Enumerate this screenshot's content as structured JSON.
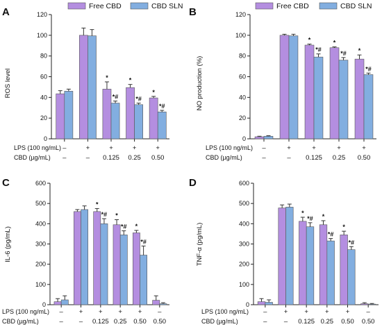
{
  "legend": {
    "series": [
      {
        "name": "Free CBD",
        "color": "#b48ee0"
      },
      {
        "name": "CBD SLN",
        "color": "#82aee0"
      }
    ]
  },
  "colors": {
    "errbar": "#333333",
    "axis": "#222222"
  },
  "chart_data": [
    {
      "panel": "A",
      "type": "bar",
      "ylabel": "ROS level",
      "ylim": [
        0,
        120
      ],
      "yticks": [
        0,
        20,
        40,
        60,
        80,
        100,
        120
      ],
      "row_labels": [
        "LPS (100 ng/mL)",
        "CBD (µg/mL)"
      ],
      "categories": [
        {
          "lps": "–",
          "cbd": "–"
        },
        {
          "lps": "+",
          "cbd": "–"
        },
        {
          "lps": "+",
          "cbd": "0.125"
        },
        {
          "lps": "+",
          "cbd": "0.25"
        },
        {
          "lps": "+",
          "cbd": "0.50"
        }
      ],
      "series": [
        {
          "name": "Free CBD",
          "values": [
            43.5,
            100,
            48,
            49.5,
            39.5
          ],
          "errors": [
            3,
            7,
            7,
            3,
            1.5
          ],
          "annotations": [
            "",
            "",
            "*",
            "*",
            "*"
          ]
        },
        {
          "name": "CBD SLN",
          "values": [
            46,
            99.5,
            34.5,
            33,
            26
          ],
          "errors": [
            2,
            6,
            2,
            1.5,
            1.5
          ],
          "annotations": [
            "",
            "",
            "*#",
            "*#",
            "*#"
          ]
        }
      ]
    },
    {
      "panel": "B",
      "type": "bar",
      "ylabel": "NO production (%)",
      "ylim": [
        0,
        120
      ],
      "yticks": [
        0,
        20,
        40,
        60,
        80,
        100,
        120
      ],
      "row_labels": [
        "LPS (100 ng/mL)",
        "CBD (µg/mL)"
      ],
      "categories": [
        {
          "lps": "–",
          "cbd": "–"
        },
        {
          "lps": "+",
          "cbd": "–"
        },
        {
          "lps": "+",
          "cbd": "0.125"
        },
        {
          "lps": "+",
          "cbd": "0.25"
        },
        {
          "lps": "+",
          "cbd": "0.50"
        }
      ],
      "series": [
        {
          "name": "Free CBD",
          "values": [
            2,
            100,
            90.5,
            88,
            77
          ],
          "errors": [
            0.5,
            1,
            1,
            0.8,
            4
          ],
          "annotations": [
            "",
            "",
            "*",
            "*",
            "*"
          ]
        },
        {
          "name": "CBD SLN",
          "values": [
            2.5,
            99.5,
            79,
            76,
            62
          ],
          "errors": [
            0.5,
            1.5,
            3,
            2.5,
            1.5
          ],
          "annotations": [
            "",
            "",
            "*#",
            "*#",
            "*#"
          ]
        }
      ]
    },
    {
      "panel": "C",
      "type": "bar",
      "ylabel": "IL-6 (pg/mL)",
      "ylim": [
        0,
        600
      ],
      "yticks": [
        0,
        100,
        200,
        300,
        400,
        500,
        600
      ],
      "row_labels": [
        "LPS (100 ng/mL)",
        "CBD (µg/mL)"
      ],
      "categories": [
        {
          "lps": "–",
          "cbd": "–"
        },
        {
          "lps": "+",
          "cbd": "–"
        },
        {
          "lps": "+",
          "cbd": "0.125"
        },
        {
          "lps": "+",
          "cbd": "0.25"
        },
        {
          "lps": "+",
          "cbd": "0.50"
        },
        {
          "lps": "–",
          "cbd": "0.50"
        }
      ],
      "series": [
        {
          "name": "Free CBD",
          "values": [
            15,
            460,
            460,
            395,
            355,
            22
          ],
          "errors": [
            15,
            10,
            15,
            25,
            12,
            22
          ],
          "annotations": [
            "",
            "",
            "*",
            "*",
            "*",
            ""
          ]
        },
        {
          "name": "CBD SLN",
          "values": [
            24,
            470,
            400,
            345,
            245,
            5
          ],
          "errors": [
            20,
            18,
            25,
            20,
            45,
            5
          ],
          "annotations": [
            "",
            "",
            "*#",
            "*#",
            "*#",
            ""
          ]
        }
      ]
    },
    {
      "panel": "D",
      "type": "bar",
      "ylabel": "TNF-α (pg/mL)",
      "ylim": [
        0,
        600
      ],
      "yticks": [
        0,
        100,
        200,
        300,
        400,
        500,
        600
      ],
      "row_labels": [
        "LPS (100 ng/mL)",
        "CBD (µg/mL)"
      ],
      "categories": [
        {
          "lps": "–",
          "cbd": "–"
        },
        {
          "lps": "+",
          "cbd": "–"
        },
        {
          "lps": "+",
          "cbd": "0.125"
        },
        {
          "lps": "+",
          "cbd": "0.25"
        },
        {
          "lps": "+",
          "cbd": "0.50"
        },
        {
          "lps": "–",
          "cbd": "0.50"
        }
      ],
      "series": [
        {
          "name": "Free CBD",
          "values": [
            15,
            478,
            412,
            395,
            345,
            5
          ],
          "errors": [
            15,
            15,
            20,
            20,
            18,
            5
          ],
          "annotations": [
            "",
            "",
            "*",
            "*",
            "*",
            ""
          ]
        },
        {
          "name": "CBD SLN",
          "values": [
            12,
            482,
            385,
            315,
            272,
            3
          ],
          "errors": [
            12,
            15,
            20,
            12,
            15,
            3
          ],
          "annotations": [
            "",
            "",
            "*#",
            "*#",
            "*#",
            ""
          ]
        }
      ]
    }
  ]
}
